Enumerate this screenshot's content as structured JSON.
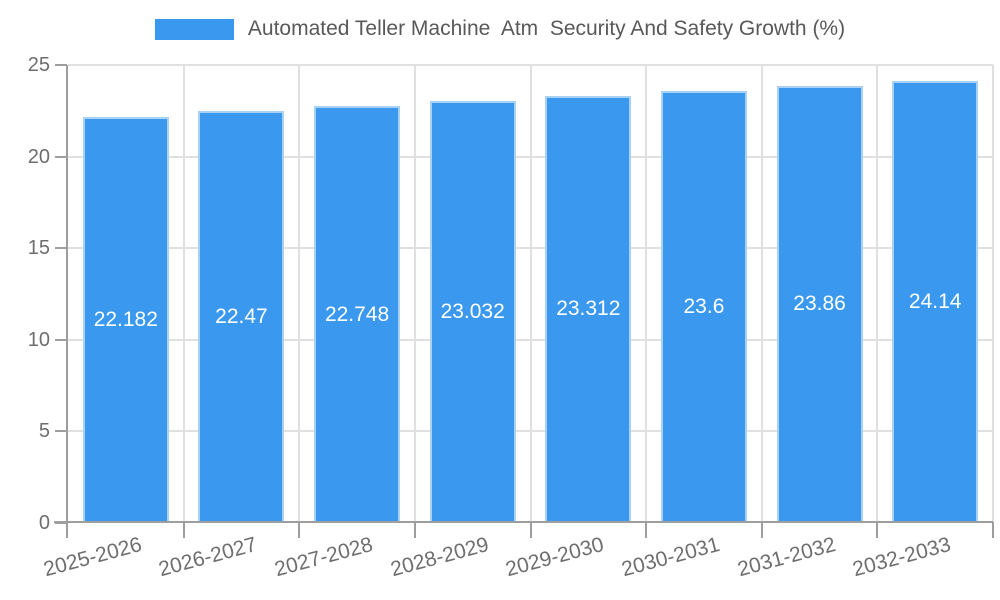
{
  "legend": {
    "label": "Automated Teller Machine  Atm  Security And Safety Growth (%)"
  },
  "colors": {
    "bar": "#3a99ee",
    "bar_border": "#a9d1f3",
    "grid": "#e0e0e0",
    "axis": "#9e9e9e",
    "tick_text": "#6e6e6e",
    "legend_text": "#59595b",
    "value_text": "#ffffff"
  },
  "chart_data": {
    "type": "bar",
    "title": "",
    "xlabel": "",
    "ylabel": "",
    "categories": [
      "2025-2026",
      "2026-2027",
      "2027-2028",
      "2028-2029",
      "2029-2030",
      "2030-2031",
      "2031-2032",
      "2032-2033"
    ],
    "series": [
      {
        "name": "Automated Teller Machine  Atm  Security And Safety Growth (%)",
        "values": [
          22.182,
          22.47,
          22.748,
          23.032,
          23.312,
          23.6,
          23.86,
          24.14
        ]
      }
    ],
    "value_labels": [
      "22.182",
      "22.47",
      "22.748",
      "23.032",
      "23.312",
      "23.6",
      "23.86",
      "24.14"
    ],
    "ylim": [
      0,
      25
    ],
    "yticks": [
      0,
      5,
      10,
      15,
      20,
      25
    ],
    "grid": true,
    "legend_position": "top",
    "x_tick_rotation_deg": -15,
    "value_label_position": "inside-center"
  }
}
